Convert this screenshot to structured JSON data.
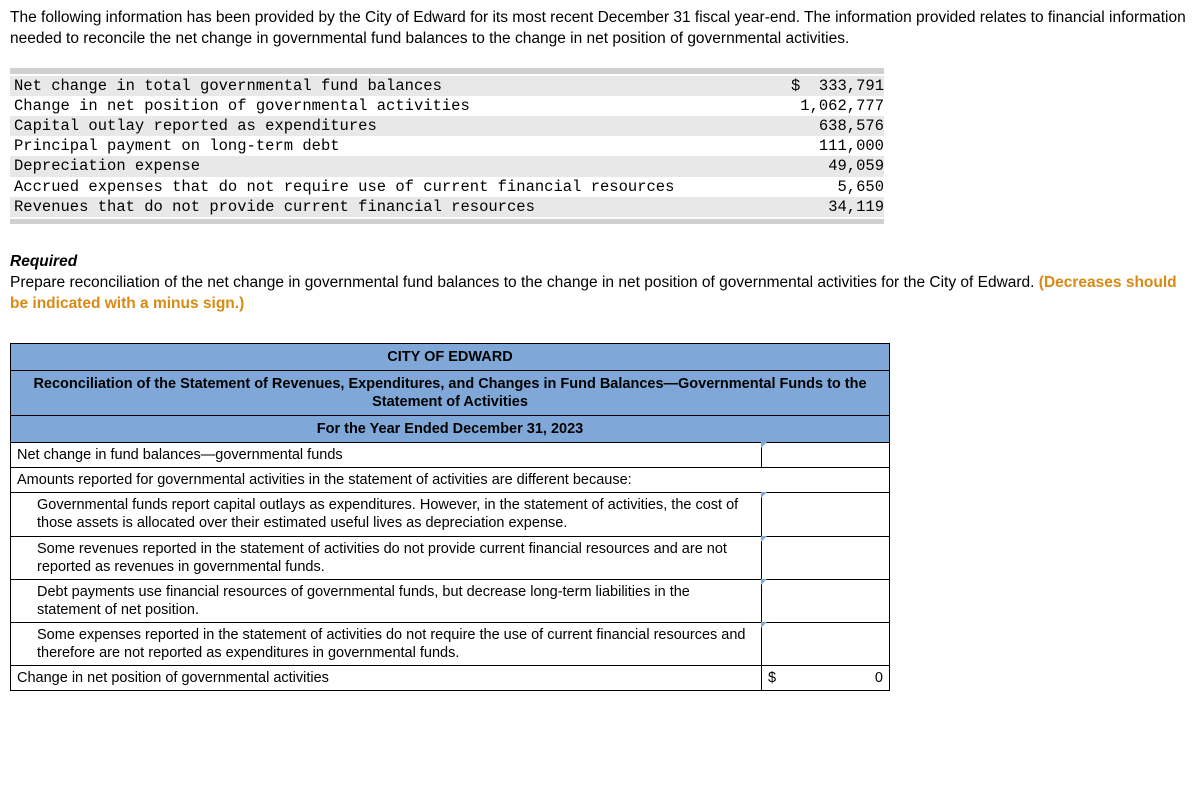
{
  "intro": "The following information has been provided by the City of Edward for its most recent December 31 fiscal year-end. The information provided relates to financial information needed to reconcile the net change in governmental fund balances to the change in net position of governmental activities.",
  "data_rows": [
    {
      "label": "Net change in total governmental fund balances",
      "value": "$  333,791",
      "shade": true
    },
    {
      "label": "Change in net position of governmental activities",
      "value": "1,062,777",
      "shade": false
    },
    {
      "label": "Capital outlay reported as expenditures",
      "value": "638,576",
      "shade": true
    },
    {
      "label": "Principal payment on long-term debt",
      "value": "111,000",
      "shade": false
    },
    {
      "label": "Depreciation expense",
      "value": "49,059",
      "shade": true
    },
    {
      "label": "Accrued expenses that do not require use of current financial resources",
      "value": "5,650",
      "shade": false
    },
    {
      "label": "Revenues that do not provide current financial resources",
      "value": "34,119",
      "shade": true
    }
  ],
  "required": {
    "heading": "Required",
    "text_pre": "Prepare reconciliation of the net change in governmental fund balances to the change in net position of governmental activities for the City of Edward. ",
    "hint": "(Decreases should be indicated with a minus sign.)"
  },
  "answer": {
    "title1": "CITY OF EDWARD",
    "title2": "Reconciliation of the Statement of Revenues, Expenditures, and Changes in Fund Balances—Governmental Funds to the Statement of Activities",
    "title3": "For the Year Ended December 31, 2023",
    "rows": [
      {
        "desc": "Net change in fund balances—governmental funds",
        "indent": false,
        "input": true
      },
      {
        "desc": "Amounts reported for governmental activities in the statement of activities are different because:",
        "indent": false,
        "input": false
      },
      {
        "desc": "Governmental funds report capital outlays as expenditures. However, in the statement of activities, the cost of those assets is allocated over their estimated useful lives as depreciation expense.",
        "indent": true,
        "input": true
      },
      {
        "desc": "Some revenues reported in the statement of activities do not provide current financial resources and are not reported as revenues in governmental funds.",
        "indent": true,
        "input": true
      },
      {
        "desc": "Debt payments use financial resources of governmental funds, but decrease long-term liabilities in the statement of net position.",
        "indent": true,
        "input": true
      },
      {
        "desc": "Some expenses reported in the statement of activities do not require the use of current financial resources and therefore are not reported as expenditures in governmental funds.",
        "indent": true,
        "input": true
      }
    ],
    "total_label": "Change in net position of governmental activities",
    "total_currency": "$",
    "total_value": "0"
  },
  "colors": {
    "header_bg": "#7fa8d9",
    "shade_bg": "#e8e8e8",
    "hint_color": "#d98a13"
  }
}
